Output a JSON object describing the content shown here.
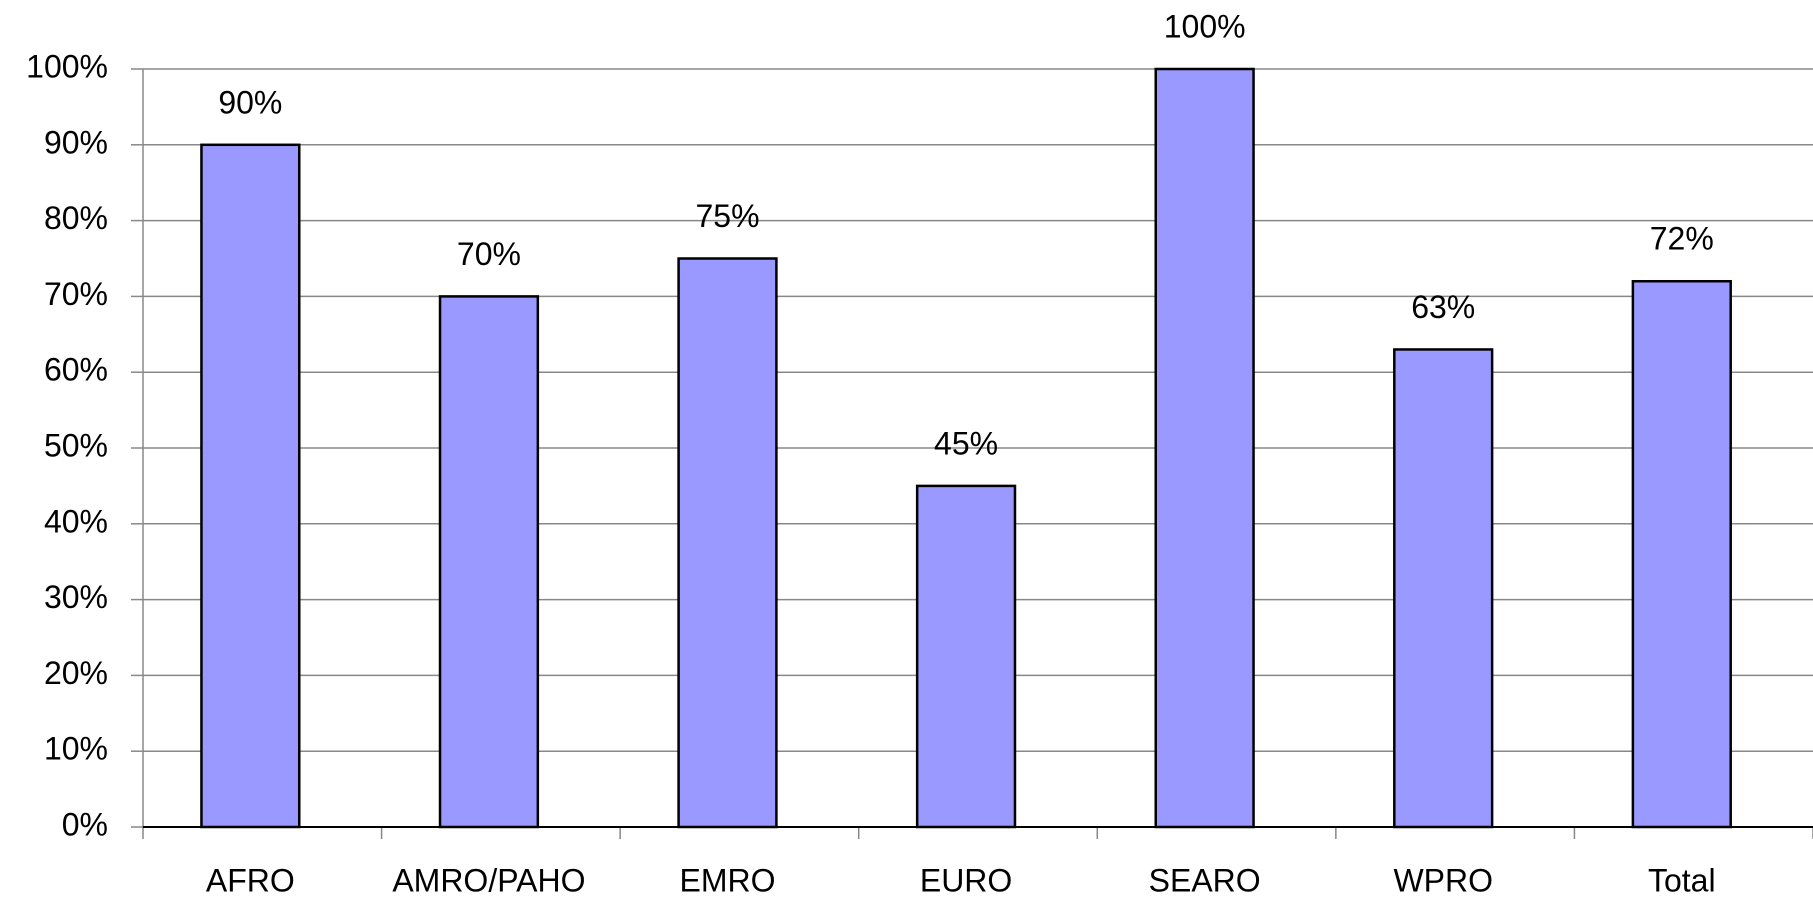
{
  "chart_data": {
    "type": "bar",
    "categories": [
      "AFRO",
      "AMRO/PAHO",
      "EMRO",
      "EURO",
      "SEARO",
      "WPRO",
      "Total"
    ],
    "values": [
      90,
      70,
      75,
      45,
      100,
      63,
      72
    ],
    "value_labels": [
      "90%",
      "70%",
      "75%",
      "45%",
      "100%",
      "63%",
      "72%"
    ],
    "color": "#9999ff",
    "ylim": [
      0,
      100
    ],
    "yticks": [
      {
        "value": 0,
        "label": "0%"
      },
      {
        "value": 10,
        "label": "10%"
      },
      {
        "value": 20,
        "label": "20%"
      },
      {
        "value": 30,
        "label": "30%"
      },
      {
        "value": 40,
        "label": "40%"
      },
      {
        "value": 50,
        "label": "50%"
      },
      {
        "value": 60,
        "label": "60%"
      },
      {
        "value": 70,
        "label": "70%"
      },
      {
        "value": 80,
        "label": "80%"
      },
      {
        "value": 90,
        "label": "90%"
      },
      {
        "value": 100,
        "label": "100%"
      }
    ],
    "grid": true
  }
}
